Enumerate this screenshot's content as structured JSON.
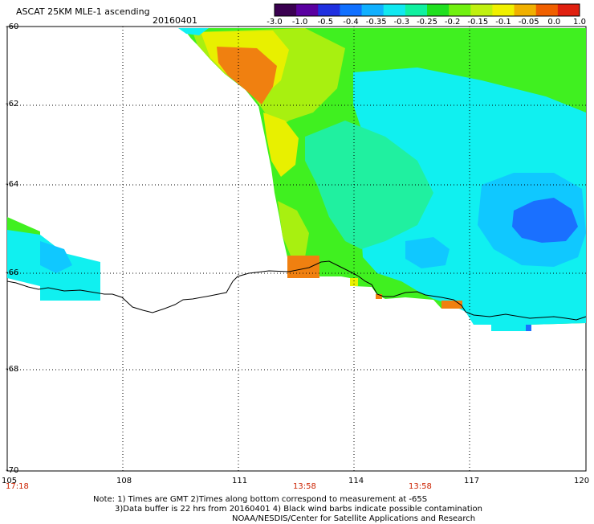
{
  "header": {
    "title": "ASCAT 25KM MLE-1 ascending",
    "date": "20160401"
  },
  "colorbar": {
    "ticks": [
      "-3.0",
      "-1.0",
      "-0.5",
      "-0.4",
      "-0.35",
      "-0.3",
      "-0.25",
      "-0.2",
      "-0.15",
      "-0.1",
      "-0.05",
      "0.0",
      "1.0"
    ],
    "colors": [
      "#3a0050",
      "#5a00a0",
      "#2030e0",
      "#1070ff",
      "#10b0ff",
      "#10e8f0",
      "#10f0a0",
      "#20e020",
      "#70f010",
      "#c0f010",
      "#f0f000",
      "#f0b000",
      "#f06000",
      "#e02010"
    ]
  },
  "axes": {
    "lat_labels": [
      "-60",
      "-62",
      "-64",
      "-66",
      "-68",
      "-70"
    ],
    "lon_labels": [
      "105",
      "108",
      "111",
      "114",
      "117",
      "120"
    ]
  },
  "times": [
    "17:18",
    "13:58",
    "13:58"
  ],
  "notes": {
    "line1": "Note: 1) Times are GMT 2)Times along bottom correspond to measurement at -65S",
    "line2": "3)Data buffer is 22 hrs from 20160401 4) Black wind barbs indicate possible contamination",
    "line3": "NOAA/NESDIS/Center for Satellite Applications and Research"
  },
  "map_colors": {
    "orange": "#f08010",
    "yellow": "#e8f000",
    "yellow_green": "#a8f010",
    "green": "#40f020",
    "aqua_green": "#20f0a0",
    "cyan": "#10f0f0",
    "light_blue": "#10c8ff",
    "blue": "#1a70ff"
  }
}
